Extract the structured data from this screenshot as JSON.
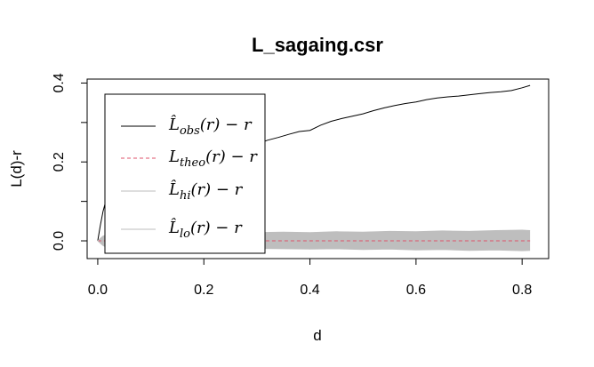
{
  "chart_data": {
    "type": "line",
    "title": "L_sagaing.csr",
    "xlabel": "d",
    "ylabel": "L(d)-r",
    "xlim": [
      -0.02,
      0.85
    ],
    "ylim": [
      -0.045,
      0.41
    ],
    "x_ticks": [
      "0.0",
      "0.2",
      "0.4",
      "0.6",
      "0.8"
    ],
    "y_ticks": [
      "0.0",
      "0.2",
      "0.4"
    ],
    "legend_position": "top-left",
    "legend": [
      {
        "label": "L̂obs(r) − r",
        "base": "L̂",
        "sub": "obs",
        "suffix": "(r) − r",
        "color": "#000000",
        "dash": "solid"
      },
      {
        "label": "Ltheo(r) − r",
        "base": "L",
        "sub": "theo",
        "suffix": "(r) − r",
        "color": "#DF536B",
        "dash": "dashed"
      },
      {
        "label": "L̂hi(r) − r",
        "base": "L̂",
        "sub": "hi",
        "suffix": "(r) − r",
        "color": "#BEBEBE",
        "dash": "solid"
      },
      {
        "label": "L̂lo(r) − r",
        "base": "L̂",
        "sub": "lo",
        "suffix": "(r) − r",
        "color": "#BEBEBE",
        "dash": "solid"
      }
    ],
    "series": [
      {
        "name": "obs",
        "color": "#000000",
        "x": [
          0,
          0.005,
          0.01,
          0.015,
          0.02,
          0.025,
          0.03,
          0.04,
          0.05,
          0.06,
          0.07,
          0.08,
          0.09,
          0.1,
          0.12,
          0.14,
          0.16,
          0.18,
          0.2,
          0.22,
          0.24,
          0.26,
          0.28,
          0.3,
          0.32,
          0.34,
          0.36,
          0.38,
          0.4,
          0.42,
          0.44,
          0.46,
          0.48,
          0.5,
          0.52,
          0.54,
          0.56,
          0.58,
          0.6,
          0.62,
          0.64,
          0.66,
          0.68,
          0.7,
          0.72,
          0.74,
          0.76,
          0.78,
          0.8,
          0.815
        ],
        "y": [
          0.0,
          0.04,
          0.075,
          0.1,
          0.122,
          0.133,
          0.137,
          0.138,
          0.136,
          0.135,
          0.133,
          0.131,
          0.13,
          0.135,
          0.142,
          0.15,
          0.158,
          0.168,
          0.18,
          0.195,
          0.208,
          0.22,
          0.232,
          0.245,
          0.255,
          0.262,
          0.27,
          0.277,
          0.28,
          0.293,
          0.303,
          0.31,
          0.316,
          0.322,
          0.33,
          0.337,
          0.343,
          0.348,
          0.352,
          0.358,
          0.362,
          0.365,
          0.367,
          0.37,
          0.373,
          0.376,
          0.378,
          0.381,
          0.388,
          0.394
        ]
      },
      {
        "name": "theo",
        "color": "#DF536B",
        "dash": "dashed",
        "x": [
          0,
          0.815
        ],
        "y": [
          0,
          0
        ]
      },
      {
        "name": "hi",
        "color": "#BEBEBE",
        "x": [
          0,
          0.01,
          0.02,
          0.04,
          0.06,
          0.08,
          0.1,
          0.15,
          0.2,
          0.25,
          0.3,
          0.35,
          0.4,
          0.45,
          0.5,
          0.55,
          0.6,
          0.65,
          0.7,
          0.75,
          0.8,
          0.815
        ],
        "y": [
          0.0,
          0.012,
          0.016,
          0.018,
          0.019,
          0.02,
          0.021,
          0.02,
          0.022,
          0.02,
          0.021,
          0.022,
          0.021,
          0.023,
          0.022,
          0.024,
          0.023,
          0.025,
          0.024,
          0.026,
          0.027,
          0.026
        ]
      },
      {
        "name": "lo",
        "color": "#BEBEBE",
        "x": [
          0,
          0.01,
          0.02,
          0.04,
          0.06,
          0.08,
          0.1,
          0.15,
          0.2,
          0.25,
          0.3,
          0.35,
          0.4,
          0.45,
          0.5,
          0.55,
          0.6,
          0.65,
          0.7,
          0.75,
          0.8,
          0.815
        ],
        "y": [
          0.0,
          -0.012,
          -0.018,
          -0.02,
          -0.022,
          -0.021,
          -0.02,
          -0.021,
          -0.02,
          -0.021,
          -0.019,
          -0.02,
          -0.021,
          -0.02,
          -0.022,
          -0.021,
          -0.023,
          -0.022,
          -0.024,
          -0.023,
          -0.025,
          -0.024
        ]
      }
    ]
  }
}
